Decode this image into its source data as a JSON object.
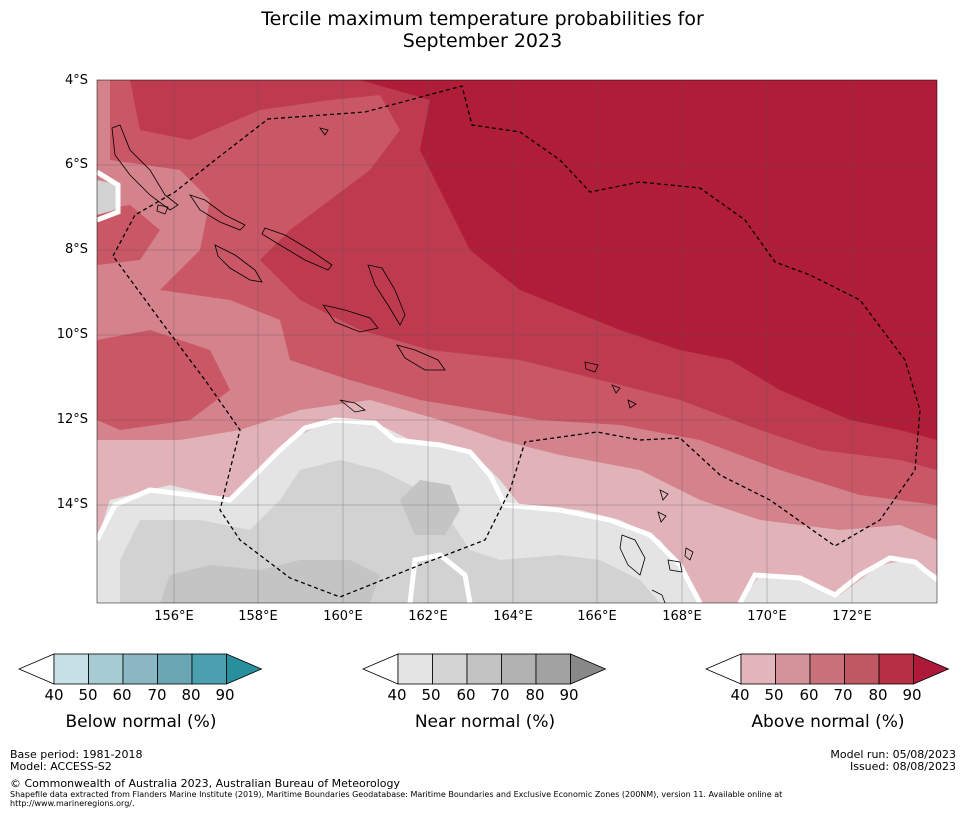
{
  "title": {
    "line1": "Tercile maximum temperature probabilities for",
    "line2": "September 2023"
  },
  "map": {
    "y_labels": [
      "4°S",
      "6°S",
      "8°S",
      "10°S",
      "12°S",
      "14°S"
    ],
    "x_labels": [
      "156°E",
      "158°E",
      "160°E",
      "162°E",
      "164°E",
      "166°E",
      "168°E",
      "170°E",
      "172°E"
    ],
    "colors": {
      "above_90": "#b01d38",
      "above_80": "#bd3a4f",
      "above_70": "#c95766",
      "above_60": "#d4828c",
      "above_50": "#e1b3b9",
      "near_50": "#e4e4e4",
      "near_60": "#d2d2d2",
      "near_70": "#c4c4c4",
      "grid": "#555555"
    }
  },
  "colorbars": [
    {
      "name": "Below normal (%)",
      "ticks": [
        "40",
        "50",
        "60",
        "70",
        "80",
        "90"
      ],
      "colors": [
        "#c8e1e6",
        "#a6cbd3",
        "#8ab7c3",
        "#6aa6b4",
        "#4aa0ae",
        "#2a8f9c"
      ]
    },
    {
      "name": "Near normal (%)",
      "ticks": [
        "40",
        "50",
        "60",
        "70",
        "80",
        "90"
      ],
      "colors": [
        "#e5e5e5",
        "#d4d4d4",
        "#c3c3c3",
        "#b1b1b1",
        "#a2a2a2",
        "#888888"
      ]
    },
    {
      "name": "Above normal (%)",
      "ticks": [
        "40",
        "50",
        "60",
        "70",
        "80",
        "90"
      ],
      "colors": [
        "#e2b6bb",
        "#d4939b",
        "#c9727c",
        "#c05863",
        "#b72f45",
        "#ad1a39"
      ]
    }
  ],
  "footer": {
    "base_period": "Base period: 1981-2018",
    "model": "Model: ACCESS-S2",
    "copyright": "© Commonwealth of Australia 2023, Australian Bureau of Meteorology",
    "shapefile_line1": "Shapefile data extracted from Flanders Marine Institute (2019), Maritime Boundaries Geodatabase: Maritime Boundaries and Exclusive Economic Zones (200NM), version 11. Available online at",
    "shapefile_line2": "http://www.marineregions.org/.",
    "model_run": "Model run: 05/08/2023",
    "issued": "Issued: 08/08/2023"
  }
}
